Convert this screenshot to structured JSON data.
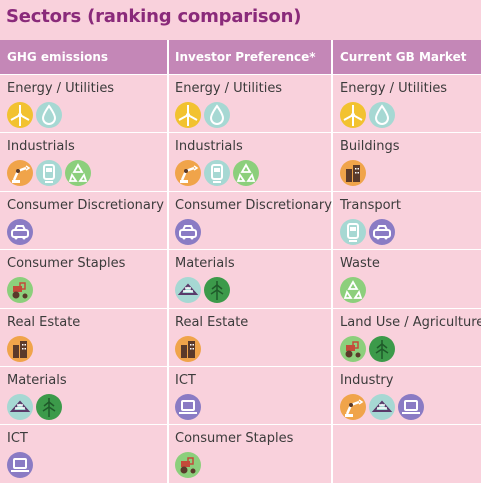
{
  "title": "Sectors (ranking comparison)",
  "columns": [
    {
      "header": "GHG emissions",
      "rows": [
        {
          "label": "Energy / Utilities",
          "icons": [
            "wind-turbine-icon",
            "water-drop-icon"
          ]
        },
        {
          "label": "Industrials",
          "icons": [
            "robot-arm-icon",
            "train-icon",
            "recycle-icon"
          ]
        },
        {
          "label": "Consumer Discretionary",
          "icons": [
            "car-icon"
          ]
        },
        {
          "label": "Consumer Staples",
          "icons": [
            "tractor-icon"
          ]
        },
        {
          "label": "Real Estate",
          "icons": [
            "buildings-icon"
          ]
        },
        {
          "label": "Materials",
          "icons": [
            "materials-icon",
            "tree-icon"
          ]
        },
        {
          "label": "ICT",
          "icons": [
            "laptop-icon"
          ]
        }
      ]
    },
    {
      "header": "Investor Preference*",
      "rows": [
        {
          "label": "Energy / Utilities",
          "icons": [
            "wind-turbine-icon",
            "water-drop-icon"
          ]
        },
        {
          "label": "Industrials",
          "icons": [
            "robot-arm-icon",
            "train-icon",
            "recycle-icon"
          ]
        },
        {
          "label": "Consumer Discretionary",
          "icons": [
            "car-icon"
          ]
        },
        {
          "label": "Materials",
          "icons": [
            "materials-icon",
            "tree-icon"
          ]
        },
        {
          "label": "Real Estate",
          "icons": [
            "buildings-icon"
          ]
        },
        {
          "label": "ICT",
          "icons": [
            "laptop-icon"
          ]
        },
        {
          "label": "Consumer Staples",
          "icons": [
            "tractor-icon"
          ]
        }
      ]
    },
    {
      "header": "Current GB Market",
      "rows": [
        {
          "label": "Energy / Utilities",
          "icons": [
            "wind-turbine-icon",
            "water-drop-icon"
          ]
        },
        {
          "label": "Buildings",
          "icons": [
            "buildings-icon"
          ]
        },
        {
          "label": "Transport",
          "icons": [
            "train-icon",
            "car-icon"
          ]
        },
        {
          "label": "Waste",
          "icons": [
            "recycle-icon"
          ]
        },
        {
          "label": "Land Use / Agriculture",
          "icons": [
            "tractor-icon",
            "tree-icon"
          ]
        },
        {
          "label": "Industry",
          "icons": [
            "robot-arm-icon",
            "materials-icon",
            "laptop-icon"
          ]
        },
        {
          "label": "",
          "icons": []
        }
      ]
    }
  ],
  "colors": {
    "background": "#f9d1dc",
    "header": "#c487b7",
    "title": "#8a2a7a"
  }
}
